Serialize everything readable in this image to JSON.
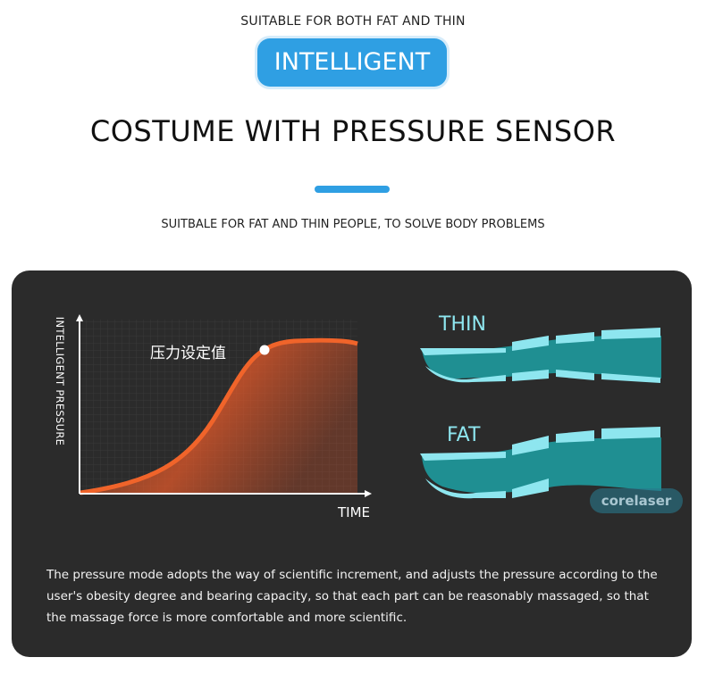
{
  "header": {
    "tagline": "SUITABLE FOR BOTH FAT AND THIN",
    "badge": "INTELLIGENT",
    "title": "COSTUME WITH PRESSURE SENSOR",
    "subtitle": "SUITBALE FOR FAT AND THIN PEOPLE, TO SOLVE BODY PROBLEMS",
    "accent_color": "#2f9fe3"
  },
  "graph": {
    "ylabel": "INTELLIGENT PRESSURE",
    "xlabel": "TIME",
    "setpoint_label": "压力设定值",
    "curve_color": "#f0642a"
  },
  "legs": {
    "thin_label": "THIN",
    "fat_label": "FAT",
    "color": "#8ee6ef",
    "watermark": "corelaser"
  },
  "description": "The pressure mode adopts the way of scientific increment, and adjusts the pressure according to the user's obesity degree and bearing capacity, so that each part can be reasonably massaged, so that the massage force is more comfortable and more scientific."
}
